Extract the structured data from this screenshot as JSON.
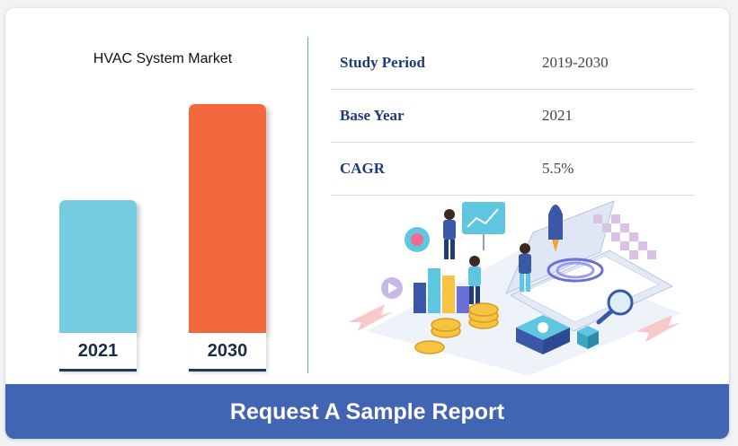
{
  "chart": {
    "title": "HVAC System Market"
  },
  "chart_data": {
    "type": "bar",
    "title": "HVAC System Market",
    "categories": [
      "2021",
      "2030"
    ],
    "values": [
      1.0,
      1.72
    ],
    "xlabel": "",
    "ylabel": "",
    "grid": false,
    "colors": [
      "#76cde2",
      "#f4683d"
    ]
  },
  "table": {
    "rows": [
      {
        "key": "Study Period",
        "value": "2019-2030"
      },
      {
        "key": "Base Year",
        "value": "2021"
      },
      {
        "key": "CAGR",
        "value": "5.5%"
      }
    ]
  },
  "illustration": {
    "icon": "market-research-illustration"
  },
  "cta": {
    "label": "Request A Sample Report",
    "color": "#4164b3"
  }
}
